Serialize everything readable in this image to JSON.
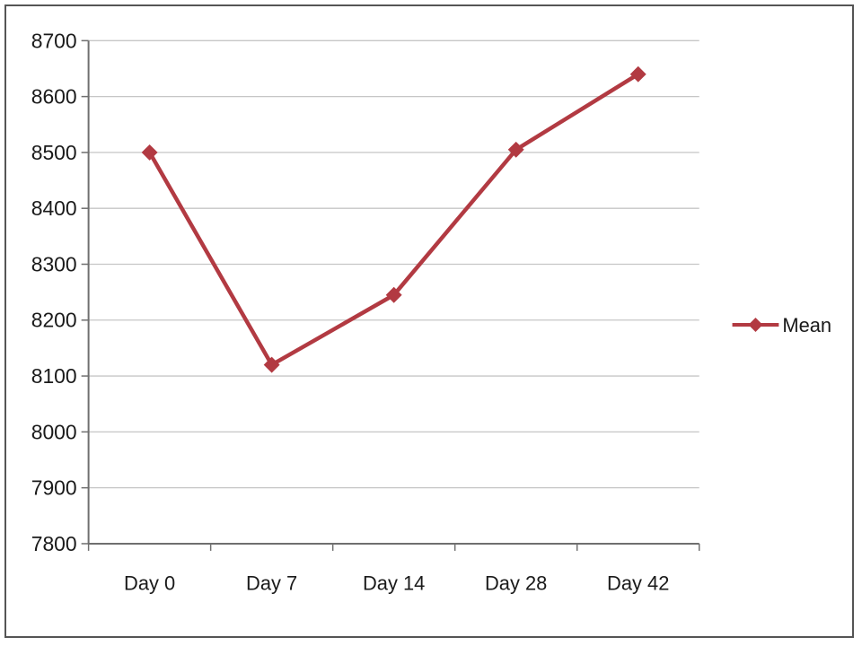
{
  "chart": {
    "legend_label": "Mean",
    "colors": {
      "series": "#b23a42",
      "grid": "#c6c6c6",
      "axis": "#6f6f6f",
      "text": "#1a1a1a",
      "frame": "#555555"
    }
  },
  "chart_data": {
    "type": "line",
    "categories": [
      "Day 0",
      "Day 7",
      "Day 14",
      "Day 28",
      "Day 42"
    ],
    "series": [
      {
        "name": "Mean",
        "values": [
          8500,
          8120,
          8245,
          8505,
          8640
        ]
      }
    ],
    "title": "",
    "xlabel": "",
    "ylabel": "",
    "ylim": [
      7800,
      8700
    ],
    "ytick_step": 100,
    "grid": true,
    "legend_position": "right",
    "marker": "diamond"
  }
}
